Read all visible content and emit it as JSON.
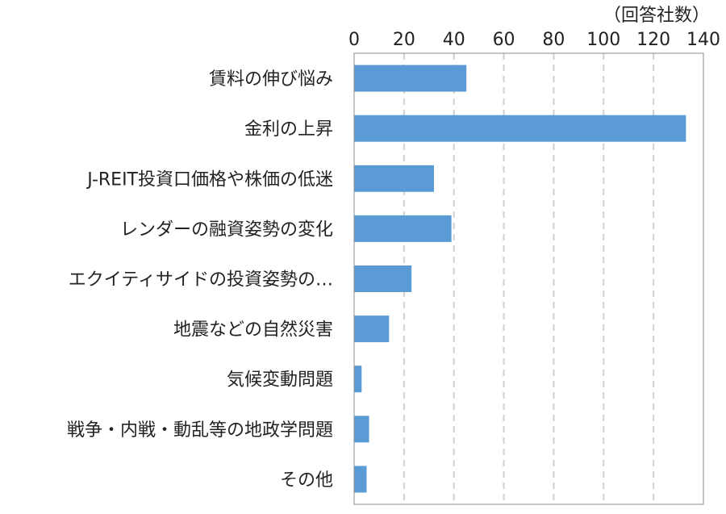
{
  "chart_data": {
    "type": "bar",
    "orientation": "horizontal",
    "title": "",
    "unit_label": "（回答社数）",
    "xlim": [
      0,
      140
    ],
    "xticks": [
      0,
      20,
      40,
      60,
      80,
      100,
      120,
      140
    ],
    "x_tick_labels": [
      "0",
      "20",
      "40",
      "60",
      "80",
      "100",
      "120",
      "140"
    ],
    "axis_position": "top",
    "grid": true,
    "grid_style": "dashed",
    "legend": "none",
    "bar_color": "#5b9bd5",
    "categories": [
      "賃料の伸び悩み",
      "金利の上昇",
      "J-REIT投資口価格や株価の低迷",
      "レンダーの融資姿勢の変化",
      "エクイティサイドの投資姿勢の…",
      "地震などの自然災害",
      "気候変動問題",
      "戦争・内戦・動乱等の地政学問題",
      "その他"
    ],
    "values": [
      45,
      133,
      32,
      39,
      23,
      14,
      3,
      6,
      5
    ]
  }
}
